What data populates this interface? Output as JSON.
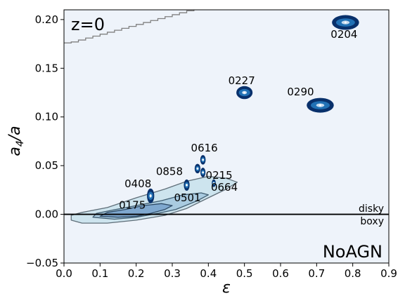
{
  "chart_data": {
    "type": "scatter",
    "title": "",
    "xlabel": "ε",
    "ylabel_main": "a",
    "ylabel_sub": "4",
    "ylabel_tail": "/a",
    "xlim": [
      0.0,
      0.9
    ],
    "ylim": [
      -0.05,
      0.21
    ],
    "x_ticks": [
      0.0,
      0.1,
      0.2,
      0.3,
      0.4,
      0.5,
      0.6,
      0.7,
      0.8,
      0.9
    ],
    "x_tick_labels": [
      "0.0",
      "0.1",
      "0.2",
      "0.3",
      "0.4",
      "0.5",
      "0.6",
      "0.7",
      "0.8",
      "0.9"
    ],
    "y_ticks": [
      -0.05,
      0.0,
      0.05,
      0.1,
      0.15,
      0.2
    ],
    "y_tick_labels": [
      "−0.05",
      "0.00",
      "0.05",
      "0.10",
      "0.15",
      "0.20"
    ],
    "grid": false,
    "corner_label_top_left": "z=0",
    "corner_label_bottom_right": "NoAGN",
    "zero_line_y": 0.0,
    "region_label_above": "disky",
    "region_label_below": "boxy",
    "points": [
      {
        "label": "0204",
        "x": 0.78,
        "y": 0.197,
        "spread_x": 0.075,
        "spread_y": 0.006
      },
      {
        "label": "0227",
        "x": 0.5,
        "y": 0.125,
        "spread_x": 0.045,
        "spread_y": 0.005
      },
      {
        "label": "0290",
        "x": 0.71,
        "y": 0.112,
        "spread_x": 0.075,
        "spread_y": 0.006
      },
      {
        "label": "0616",
        "x": 0.385,
        "y": 0.056,
        "spread_x": 0.015,
        "spread_y": 0.003
      },
      {
        "label": "0858",
        "x": 0.37,
        "y": 0.047,
        "spread_x": 0.016,
        "spread_y": 0.003
      },
      {
        "label": "0215",
        "x": 0.385,
        "y": 0.043,
        "spread_x": 0.014,
        "spread_y": 0.003
      },
      {
        "label": "0664",
        "x": 0.415,
        "y": 0.032,
        "spread_x": 0.011,
        "spread_y": 0.002
      },
      {
        "label": "0408",
        "x": 0.24,
        "y": 0.019,
        "spread_x": 0.02,
        "spread_y": 0.006
      },
      {
        "label": "0501",
        "x": 0.34,
        "y": 0.03,
        "spread_x": 0.016,
        "spread_y": 0.004
      },
      {
        "label": "0175",
        "x": 0.24,
        "y": 0.008,
        "spread_x": 0.0,
        "spread_y": 0.0
      }
    ],
    "density_contours": [
      {
        "level": "outer",
        "fill": "#cde4ee",
        "stroke": "#5f6e78",
        "outline": [
          [
            0.02,
            -0.006
          ],
          [
            0.05,
            -0.009
          ],
          [
            0.12,
            -0.009
          ],
          [
            0.2,
            -0.006
          ],
          [
            0.28,
            -0.001
          ],
          [
            0.34,
            0.006
          ],
          [
            0.4,
            0.017
          ],
          [
            0.45,
            0.026
          ],
          [
            0.48,
            0.033
          ],
          [
            0.45,
            0.037
          ],
          [
            0.4,
            0.039
          ],
          [
            0.34,
            0.034
          ],
          [
            0.28,
            0.026
          ],
          [
            0.2,
            0.017
          ],
          [
            0.12,
            0.007
          ],
          [
            0.05,
            0.002
          ],
          [
            0.02,
            -0.001
          ]
        ]
      },
      {
        "level": "middle",
        "fill": "#a9cbe0",
        "stroke": "#3f5c70",
        "outline": [
          [
            0.08,
            -0.003
          ],
          [
            0.14,
            -0.005
          ],
          [
            0.2,
            -0.003
          ],
          [
            0.26,
            0.001
          ],
          [
            0.31,
            0.005
          ],
          [
            0.37,
            0.014
          ],
          [
            0.4,
            0.02
          ],
          [
            0.38,
            0.022
          ],
          [
            0.33,
            0.02
          ],
          [
            0.27,
            0.014
          ],
          [
            0.2,
            0.009
          ],
          [
            0.13,
            0.004
          ],
          [
            0.09,
            0.001
          ]
        ]
      },
      {
        "level": "inner",
        "fill": "#7fa8cf",
        "stroke": "#2e4a66",
        "outline": [
          [
            0.1,
            -0.002
          ],
          [
            0.15,
            -0.003
          ],
          [
            0.2,
            -0.002
          ],
          [
            0.24,
            0.001
          ],
          [
            0.28,
            0.005
          ],
          [
            0.3,
            0.009
          ],
          [
            0.27,
            0.011
          ],
          [
            0.22,
            0.009
          ],
          [
            0.17,
            0.005
          ],
          [
            0.12,
            0.002
          ]
        ]
      }
    ],
    "boundary_curve": {
      "color": "#808080",
      "x": [
        0.0,
        0.02,
        0.04,
        0.06,
        0.08,
        0.1,
        0.12,
        0.14,
        0.16,
        0.18,
        0.2,
        0.22,
        0.24,
        0.26,
        0.28,
        0.3,
        0.32,
        0.34,
        0.36
      ],
      "y": [
        0.176,
        0.177,
        0.179,
        0.181,
        0.183,
        0.185,
        0.187,
        0.189,
        0.191,
        0.193,
        0.195,
        0.197,
        0.199,
        0.201,
        0.203,
        0.205,
        0.207,
        0.209,
        0.211
      ]
    }
  },
  "colors": {
    "background": "#eef3fa",
    "point_dark": "#08306b",
    "point_mid": "#2171b5",
    "point_light": "#c6dbef",
    "zero_line": "#000000"
  }
}
